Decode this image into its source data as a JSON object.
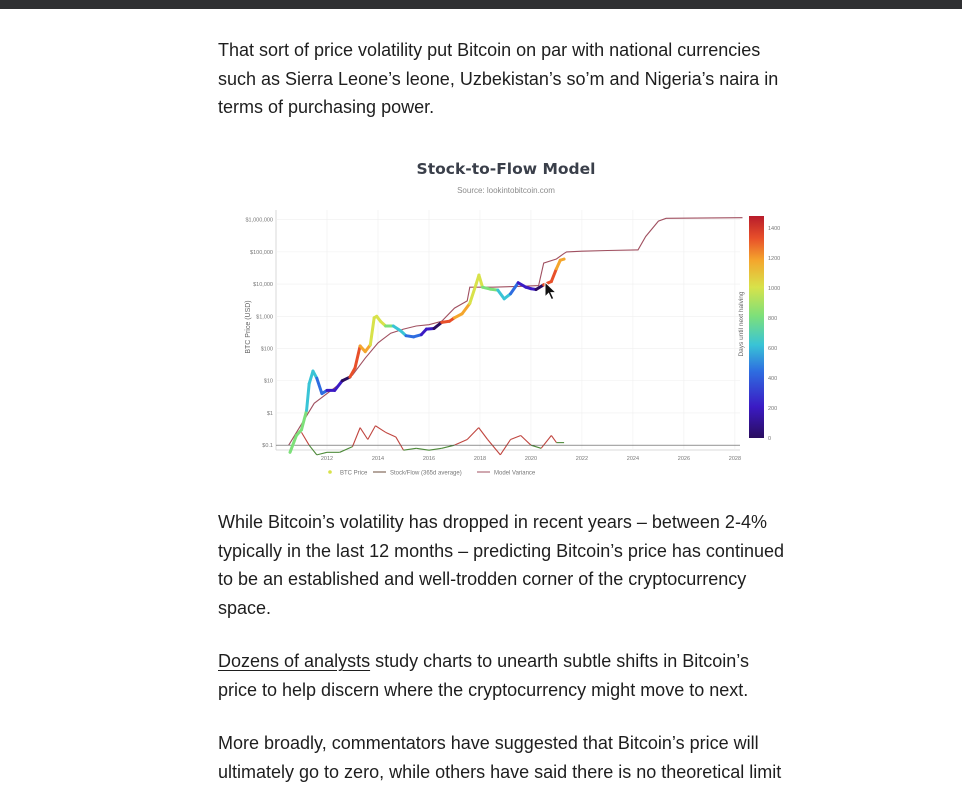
{
  "article": {
    "p1": "That sort of price volatility put Bitcoin on par with national currencies such as Sierra Leone’s leone, Uzbekistan’s so’m and Nigeria’s naira in terms of purchasing power.",
    "p2": "While Bitcoin’s volatility has dropped in recent years – between 2-4% typically in the last 12 months – predicting Bitcoin’s price has continued to be an established and well-trodden corner of the cryptocurrency space.",
    "p3_link": "Dozens of analysts",
    "p3_rest": " study charts to unearth subtle shifts in Bitcoin’s price to help discern where the cryptocurrency might move to next.",
    "p4": "More broadly, commentators have suggested that Bitcoin’s price will ultimately go to zero, while others have said there is no theoretical limit"
  },
  "chart_data": {
    "type": "line",
    "title": "Stock-to-Flow Model",
    "subtitle": "Source: lookintobitcoin.com",
    "ylabel": "BTC Price (USD)",
    "y_scale": "log",
    "y_ticks": [
      "$0.1",
      "$1",
      "$10",
      "$100",
      "$1,000",
      "$10,000",
      "$100,000",
      "$1,000,000"
    ],
    "y_tick_values": [
      0.1,
      1,
      10,
      100,
      1000,
      10000,
      100000,
      1000000
    ],
    "x_ticks": [
      "2012",
      "2014",
      "2016",
      "2018",
      "2020",
      "2022",
      "2024",
      "2026",
      "2028"
    ],
    "x_tick_values": [
      2012,
      2014,
      2016,
      2018,
      2020,
      2022,
      2024,
      2026,
      2028
    ],
    "xlim": [
      2010.0,
      2028.2
    ],
    "colorbar": {
      "label": "Days until next halving",
      "ticks": [
        "0",
        "200",
        "400",
        "600",
        "800",
        "1000",
        "1200",
        "1400"
      ],
      "tick_values": [
        0,
        200,
        400,
        600,
        800,
        1000,
        1200,
        1400
      ],
      "range": [
        0,
        1480
      ]
    },
    "legend": [
      "BTC Price",
      "Stock/Flow (365d average)",
      "Model Variance"
    ],
    "series": [
      {
        "name": "BTC Price",
        "x": [
          2010.55,
          2010.8,
          2011.0,
          2011.2,
          2011.3,
          2011.45,
          2011.6,
          2011.8,
          2012.0,
          2012.3,
          2012.6,
          2012.9,
          2013.1,
          2013.3,
          2013.5,
          2013.7,
          2013.85,
          2013.95,
          2014.1,
          2014.3,
          2014.6,
          2014.9,
          2015.1,
          2015.4,
          2015.7,
          2015.9,
          2016.2,
          2016.5,
          2016.8,
          2017.0,
          2017.3,
          2017.6,
          2017.85,
          2017.96,
          2018.1,
          2018.4,
          2018.7,
          2018.95,
          2019.2,
          2019.5,
          2019.8,
          2020.0,
          2020.2,
          2020.5,
          2020.8,
          2021.0,
          2021.15,
          2021.3
        ],
        "y": [
          0.06,
          0.2,
          0.3,
          1.2,
          8,
          20,
          12,
          4,
          5,
          5,
          10,
          13,
          25,
          120,
          80,
          130,
          900,
          1000,
          700,
          500,
          500,
          350,
          250,
          230,
          270,
          400,
          420,
          650,
          700,
          900,
          1200,
          2500,
          10000,
          19000,
          8000,
          7000,
          6500,
          3500,
          5000,
          11000,
          8000,
          7200,
          6800,
          9500,
          12000,
          30000,
          55000,
          60000
        ]
      },
      {
        "name": "Stock/Flow (365d average)",
        "x": [
          2010.5,
          2011.5,
          2012.5,
          2013.0,
          2013.5,
          2014.0,
          2014.5,
          2015.0,
          2015.5,
          2016.0,
          2016.5,
          2017.0,
          2017.5,
          2017.6,
          2018.5,
          2019.5,
          2020.3,
          2020.5,
          2021.0,
          2021.3,
          2021.4,
          2022.0,
          2023.0,
          2024.2,
          2024.5,
          2025.0,
          2025.3,
          2028.3
        ],
        "y": [
          0.1,
          2,
          8,
          15,
          50,
          150,
          300,
          400,
          500,
          550,
          700,
          1800,
          3000,
          8000,
          8000,
          8500,
          9000,
          45000,
          60000,
          90000,
          100000,
          105000,
          110000,
          115000,
          300000,
          900000,
          1100000,
          1150000
        ]
      },
      {
        "name": "Model Variance",
        "x": [
          2011.0,
          2011.3,
          2011.6,
          2012.0,
          2012.5,
          2013.0,
          2013.3,
          2013.6,
          2013.9,
          2014.3,
          2014.7,
          2015.0,
          2015.5,
          2016.0,
          2016.5,
          2017.0,
          2017.5,
          2017.95,
          2018.3,
          2018.8,
          2019.2,
          2019.6,
          2020.0,
          2020.4,
          2020.8,
          2021.0,
          2021.3
        ],
        "y": [
          0.25,
          0.1,
          0.05,
          0.06,
          0.06,
          0.09,
          0.35,
          0.15,
          0.4,
          0.25,
          0.18,
          0.07,
          0.08,
          0.07,
          0.08,
          0.1,
          0.15,
          0.35,
          0.15,
          0.05,
          0.15,
          0.2,
          0.1,
          0.08,
          0.2,
          0.12,
          0.12
        ]
      }
    ]
  },
  "colors": {
    "btc_scale": [
      "#2a0d5e",
      "#3b1ac4",
      "#2e6de0",
      "#39c4d6",
      "#7de07a",
      "#d8e24a",
      "#f4a62d",
      "#e8502a",
      "#b81c2b"
    ],
    "stock_flow_line": "#6b4c3b",
    "model_line": "#a05060",
    "variance_line": "#4e8a3a",
    "variance_line_high": "#c0453f"
  },
  "cursor": {
    "icon": "mouse-pointer-icon"
  }
}
